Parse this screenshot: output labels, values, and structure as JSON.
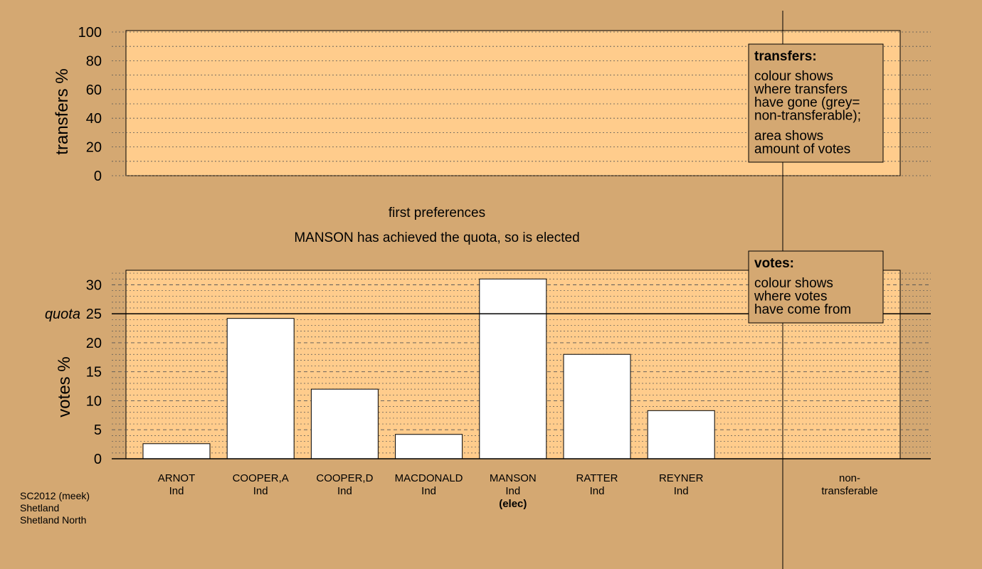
{
  "chart_data": [
    {
      "type": "bar",
      "panel": "transfers",
      "ylabel": "transfers %",
      "ylim": [
        0,
        100
      ],
      "yticks": [
        "0",
        "20",
        "40",
        "60",
        "80",
        "100"
      ],
      "values": [],
      "legend": {
        "title": "transfers:",
        "lines_a": [
          "colour shows",
          "where transfers",
          "have gone (grey=",
          "non-transferable);"
        ],
        "lines_b": [
          "area shows",
          "amount of votes"
        ]
      }
    },
    {
      "type": "bar",
      "panel": "votes",
      "ylabel": "votes %",
      "ylim": [
        0,
        32.5
      ],
      "yticks": [
        "0",
        "5",
        "10",
        "15",
        "20",
        "25",
        "30"
      ],
      "quota": {
        "label": "quota",
        "value": 25
      },
      "categories": [
        {
          "name": "ARNOT",
          "party": "Ind",
          "value": 2.6,
          "note": ""
        },
        {
          "name": "COOPER,A",
          "party": "Ind",
          "value": 24.2,
          "note": ""
        },
        {
          "name": "COOPER,D",
          "party": "Ind",
          "value": 12.0,
          "note": ""
        },
        {
          "name": "MACDONALD",
          "party": "Ind",
          "value": 4.2,
          "note": ""
        },
        {
          "name": "MANSON",
          "party": "Ind",
          "value": 31.0,
          "note": "(elec)"
        },
        {
          "name": "RATTER",
          "party": "Ind",
          "value": 18.0,
          "note": ""
        },
        {
          "name": "REYNER",
          "party": "Ind",
          "value": 8.3,
          "note": ""
        }
      ],
      "nontransferable": {
        "line1": "non-",
        "line2": "transferable"
      },
      "legend": {
        "title": "votes:",
        "lines": [
          "colour shows",
          "where votes",
          "have come from"
        ]
      }
    }
  ],
  "stage_title": "first preferences",
  "stage_message": "MANSON has achieved the quota, so is elected",
  "footer": [
    "SC2012 (meek)",
    "Shetland",
    "Shetland North"
  ],
  "colors": {
    "background": "#d4a872",
    "plot_fill": "#ffcc8c",
    "bar_fill": "#ffffff",
    "legend_fill": "#d4a872"
  }
}
